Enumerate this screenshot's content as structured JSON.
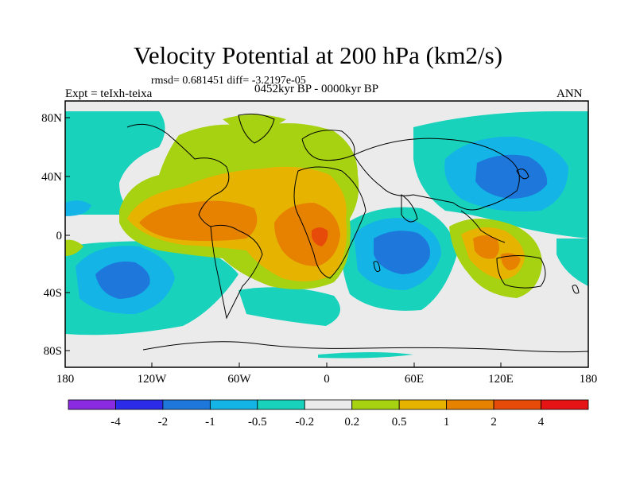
{
  "title": "Velocity Potential at 200 hPa (km2/s)",
  "stats": "rmsd= 0.681451  diff= -3.2197e-05",
  "expt": "Expt = teIxh-teixa",
  "period": "0452kyr BP - 0000kyr BP",
  "season": "ANN",
  "lat_labels": [
    "80N",
    "40N",
    "0",
    "40S",
    "80S"
  ],
  "lon_labels": [
    "180",
    "120W",
    "60W",
    "0",
    "60E",
    "120E",
    "180"
  ],
  "colorbar": {
    "labels": [
      "-4",
      "-2",
      "-1",
      "-0.5",
      "-0.2",
      "0.2",
      "0.5",
      "1",
      "2",
      "4"
    ],
    "colors": [
      "#8a2be2",
      "#2b2be8",
      "#1e78dc",
      "#14b4e6",
      "#18d2bc",
      "#ebebeb",
      "#a6d212",
      "#e6b400",
      "#e68200",
      "#e64b0a",
      "#e61414"
    ]
  },
  "colors": {
    "neutral": "#ebebeb",
    "teal": "#18d2bc",
    "cyan": "#14b4e6",
    "blue": "#1e78dc",
    "lime": "#a6d212",
    "gold": "#e6b400",
    "orange": "#e68200",
    "redorange": "#e64b0a"
  }
}
